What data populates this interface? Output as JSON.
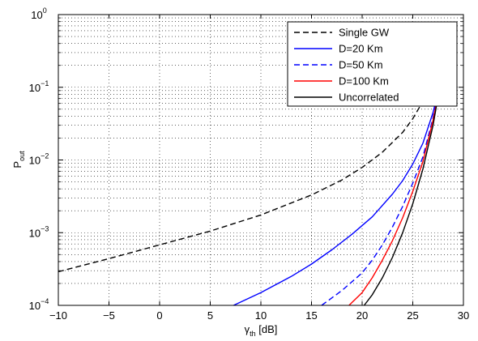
{
  "chart_data": {
    "type": "line",
    "title": "",
    "xlabel": {
      "main": "γ",
      "sub": "th",
      "unit": " [dB]"
    },
    "ylabel": {
      "main": "P",
      "sub": "out"
    },
    "xlim": [
      -10,
      30
    ],
    "ylim": [
      0.0001,
      1
    ],
    "yscale": "log",
    "grid": true,
    "legend_position": "top-right",
    "x_ticks": [
      -10,
      -5,
      0,
      5,
      10,
      15,
      20,
      25,
      30
    ],
    "x_tick_labels": [
      "−10",
      "−5",
      "0",
      "5",
      "10",
      "15",
      "20",
      "25",
      "30"
    ],
    "y_ticks": [
      {
        "value": 0.0001,
        "base": "10",
        "exp": "−4"
      },
      {
        "value": 0.001,
        "base": "10",
        "exp": "−3"
      },
      {
        "value": 0.01,
        "base": "10",
        "exp": "−2"
      },
      {
        "value": 0.1,
        "base": "10",
        "exp": "−1"
      },
      {
        "value": 1,
        "base": "10",
        "exp": "0"
      }
    ],
    "series": [
      {
        "name": "Single GW",
        "color": "#000000",
        "dash": "dashed",
        "x": [
          -10,
          -5,
          0,
          5,
          10,
          15,
          18,
          20,
          22,
          24,
          25,
          26,
          27,
          28
        ],
        "y": [
          0.00029,
          0.00044,
          0.00068,
          0.00105,
          0.00175,
          0.0033,
          0.0053,
          0.0079,
          0.0128,
          0.024,
          0.037,
          0.064,
          0.13,
          0.56
        ]
      },
      {
        "name": "D=20 Km",
        "color": "#0000ff",
        "dash": "solid",
        "x": [
          7.3,
          10,
          13,
          15,
          17,
          19,
          21,
          23,
          24,
          25,
          26,
          27,
          27.5,
          28
        ],
        "y": [
          0.0001,
          0.00015,
          0.00025,
          0.00037,
          0.00058,
          0.00095,
          0.00165,
          0.0034,
          0.0052,
          0.0088,
          0.017,
          0.045,
          0.087,
          0.31
        ]
      },
      {
        "name": "D=50 Km",
        "color": "#0000ff",
        "dash": "dashed",
        "x": [
          16,
          18,
          20,
          21,
          22,
          23,
          24,
          25,
          26,
          27,
          27.5,
          28
        ],
        "y": [
          0.0001,
          0.00016,
          0.00028,
          0.00042,
          0.00068,
          0.0012,
          0.0023,
          0.0048,
          0.011,
          0.038,
          0.085,
          0.33
        ]
      },
      {
        "name": "D=100 Km",
        "color": "#ff0000",
        "dash": "solid",
        "x": [
          18.7,
          20,
          21,
          22,
          23,
          24,
          25,
          26,
          27,
          27.5,
          28
        ],
        "y": [
          0.0001,
          0.00015,
          0.00024,
          0.00042,
          0.00078,
          0.0016,
          0.0037,
          0.0095,
          0.035,
          0.08,
          0.32
        ]
      },
      {
        "name": "Uncorrelated",
        "color": "#000000",
        "dash": "solid",
        "x": [
          20.2,
          21,
          22,
          23,
          24,
          25,
          26,
          27,
          27.5,
          28
        ],
        "y": [
          0.0001,
          0.00014,
          0.00024,
          0.00046,
          0.001,
          0.0025,
          0.0075,
          0.03,
          0.075,
          0.3
        ]
      }
    ]
  }
}
